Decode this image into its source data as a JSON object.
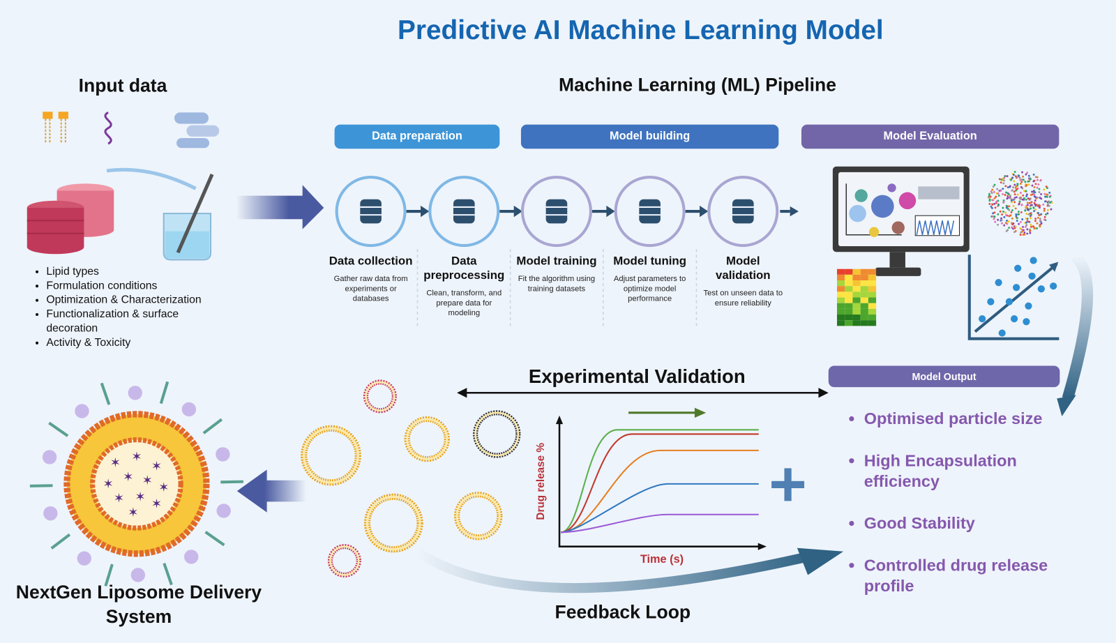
{
  "title": "Predictive AI Machine Learning Model",
  "input": {
    "heading": "Input data",
    "items": [
      "Lipid types",
      "Formulation conditions",
      "Optimization & Characterization",
      "Functionalization & surface decoration",
      "Activity & Toxicity"
    ]
  },
  "pipeline": {
    "heading": "Machine Learning (ML) Pipeline",
    "phases": [
      {
        "label": "Data preparation",
        "color": "#3d95d8"
      },
      {
        "label": "Model building",
        "color": "#3f73bf"
      },
      {
        "label": "Model Evaluation",
        "color": "#7266a8"
      }
    ],
    "steps": [
      {
        "name": "Data collection",
        "desc": "Gather raw data from experiments or databases",
        "icon": "database-document-icon"
      },
      {
        "name": "Data preprocessing",
        "desc": "Clean, transform, and prepare data for modeling",
        "icon": "database-filter-icon"
      },
      {
        "name": "Model training",
        "desc": "Fit the algorithm using training datasets",
        "icon": "database-gear-icon"
      },
      {
        "name": "Model tuning",
        "desc": "Adjust parameters to optimize model performance",
        "icon": "gear-sliders-icon"
      },
      {
        "name": "Model validation",
        "desc": "Test on unseen data to ensure reliability",
        "icon": "gear-check-icon"
      }
    ]
  },
  "output": {
    "heading": "Model Output",
    "color": "#6e67aa",
    "items": [
      "Optimised particle size",
      "High Encapsulation efficiency",
      "Good Stability",
      "Controlled drug release profile"
    ]
  },
  "experimental": {
    "heading": "Experimental Validation",
    "ylabel": "Drug release %",
    "xlabel": "Time (s)"
  },
  "feedback": "Feedback Loop",
  "liposome": "NextGen Liposome Delivery System"
}
